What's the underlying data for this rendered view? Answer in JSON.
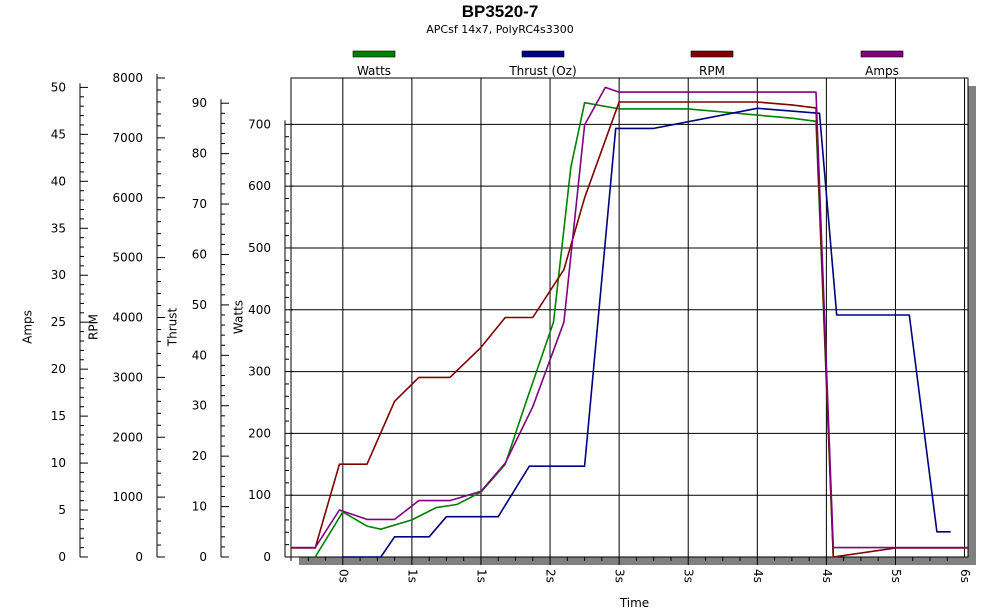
{
  "chart_data": {
    "type": "line",
    "title": "BP3520-7",
    "subtitle": "APCsf 14x7, PolyRC4s3300",
    "xlabel": "Time",
    "x_tick_labels": [
      "0s",
      "1s",
      "1s",
      "2s",
      "3s",
      "3s",
      "4s",
      "4s",
      "5s",
      "6s"
    ],
    "grid": true,
    "legend_position": "top",
    "axes": [
      {
        "id": "amps",
        "label": "Amps",
        "min": 0,
        "max": 50,
        "major_step": 5,
        "minor_step": 1
      },
      {
        "id": "rpm",
        "label": "RPM",
        "min": 0,
        "max": 8000,
        "major_step": 1000,
        "minor_step": 200
      },
      {
        "id": "thrust",
        "label": "Thrust",
        "min": 0,
        "max": 90,
        "major_step": 10,
        "minor_step": 2
      },
      {
        "id": "watts",
        "label": "Watts",
        "min": 0,
        "max": 700,
        "major_step": 100,
        "minor_step": 20
      }
    ],
    "axis_ranges": {
      "amps": [
        0,
        51
      ],
      "rpm": [
        0,
        8000
      ],
      "thrust": [
        0,
        95
      ],
      "watts": [
        0,
        775
      ]
    },
    "x_range": [
      -0.75,
      9.05
    ],
    "series": [
      {
        "name": "Watts",
        "axis": "watts",
        "color": "#008000",
        "x": [
          -0.4,
          0,
          0.35,
          0.55,
          1,
          1.35,
          1.65,
          2,
          2.35,
          2.65,
          3.05,
          3.3,
          3.5,
          4,
          4.5,
          5,
          5.5,
          6,
          6.5,
          6.85,
          7.1
        ],
        "y": [
          0,
          73,
          50,
          45,
          60,
          80,
          85,
          105,
          150,
          250,
          380,
          630,
          735,
          725,
          725,
          725,
          720,
          715,
          710,
          705,
          0
        ]
      },
      {
        "name": "Thrust (Oz)",
        "axis": "thrust",
        "color": "#000080",
        "x": [
          0,
          0.55,
          0.75,
          1.25,
          1.5,
          2,
          2.25,
          2.7,
          3.05,
          3.5,
          3.95,
          4.1,
          4.5,
          6,
          6.9,
          7.15,
          7.55,
          8,
          8.2,
          8.6,
          8.8
        ],
        "y": [
          0,
          0,
          4,
          4,
          8,
          8,
          8,
          18,
          18,
          18,
          85,
          85,
          85,
          89,
          88,
          48,
          48,
          48,
          48,
          5,
          5
        ]
      },
      {
        "name": "RPM",
        "axis": "rpm",
        "color": "#800000",
        "x": [
          -0.75,
          -0.4,
          -0.05,
          0.35,
          0.75,
          1.1,
          1.55,
          2,
          2.35,
          2.75,
          3.2,
          3.5,
          4,
          4.5,
          5,
          5.5,
          6,
          6.5,
          6.85,
          7.1,
          8,
          9.05
        ],
        "y": [
          150,
          150,
          1550,
          1550,
          2600,
          3000,
          3000,
          3500,
          4000,
          4000,
          4800,
          6000,
          7600,
          7600,
          7600,
          7600,
          7600,
          7550,
          7500,
          0,
          150,
          150
        ]
      },
      {
        "name": "Amps",
        "axis": "amps",
        "color": "#800080",
        "x": [
          -0.75,
          -0.4,
          -0.05,
          0.35,
          0.75,
          1.1,
          1.55,
          2,
          2.35,
          2.75,
          3.2,
          3.5,
          3.8,
          4,
          4.5,
          5,
          5.5,
          6,
          6.5,
          6.85,
          7.1,
          8,
          9.05
        ],
        "y": [
          1,
          1,
          5,
          4,
          4,
          6,
          6,
          7,
          10,
          16,
          25,
          46,
          50,
          49.5,
          49.5,
          49.5,
          49.5,
          49.5,
          49.5,
          49.5,
          1,
          1,
          1
        ]
      }
    ]
  }
}
